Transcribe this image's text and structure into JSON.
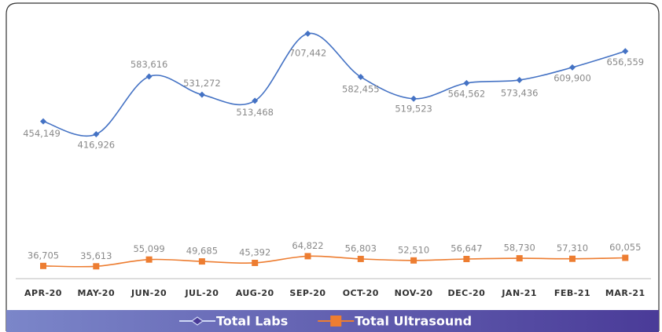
{
  "chart_data": {
    "type": "line",
    "categories": [
      "APR-20",
      "MAY-20",
      "JUN-20",
      "JUL-20",
      "AUG-20",
      "SEP-20",
      "OCT-20",
      "NOV-20",
      "DEC-20",
      "JAN-21",
      "FEB-21",
      "MAR-21"
    ],
    "series": [
      {
        "name": "Total Labs",
        "color": "#4472c4",
        "marker": "diamond",
        "values": [
          454149,
          416926,
          583616,
          531272,
          513468,
          707442,
          582455,
          519523,
          564562,
          573436,
          609900,
          656559
        ],
        "value_labels": [
          "454,149",
          "416,926",
          "583,616",
          "531,272",
          "513,468",
          "707,442",
          "582,455",
          "519,523",
          "564,562",
          "573,436",
          "609,900",
          "656,559"
        ]
      },
      {
        "name": "Total Ultrasound",
        "color": "#ed7d31",
        "marker": "square",
        "values": [
          36705,
          35613,
          55099,
          49685,
          45392,
          64822,
          56803,
          52510,
          56647,
          58730,
          57310,
          60055
        ],
        "value_labels": [
          "36,705",
          "35,613",
          "55,099",
          "49,685",
          "45,392",
          "64,822",
          "56,803",
          "52,510",
          "56,647",
          "58,730",
          "57,310",
          "60,055"
        ]
      }
    ],
    "ylim": [
      0,
      800000
    ],
    "smooth": true,
    "legend": "bottom"
  }
}
